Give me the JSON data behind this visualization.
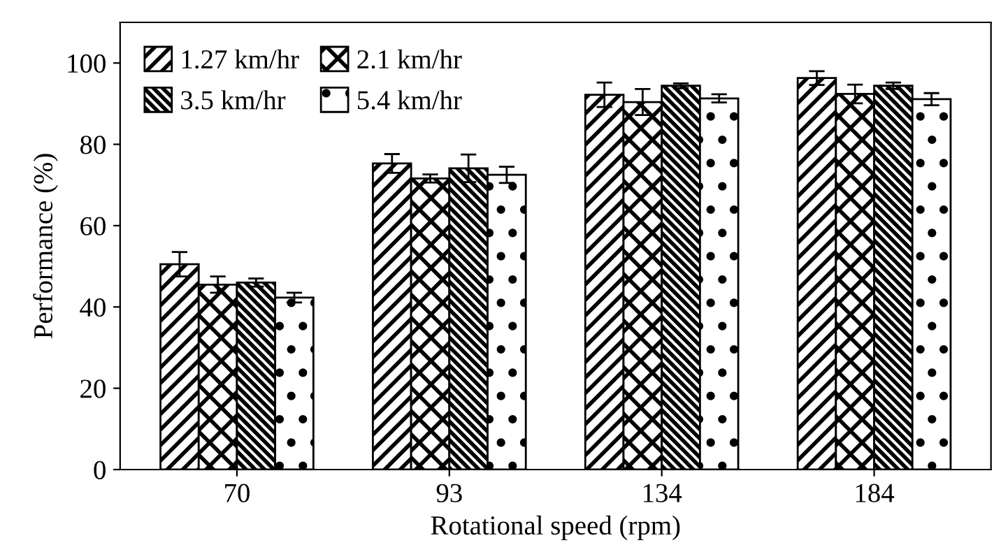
{
  "chart_data": {
    "type": "bar",
    "xlabel": "Rotational speed (rpm)",
    "ylabel": "Performance (%)",
    "categories": [
      "70",
      "93",
      "134",
      "184"
    ],
    "series": [
      {
        "name": "1.27 km/hr",
        "color": "#000000",
        "values": [
          50.5,
          75.3,
          92.2,
          96.3
        ],
        "errors": [
          3,
          2.3,
          3,
          1.7
        ]
      },
      {
        "name": "2.1 km/hr",
        "color": "#000000",
        "values": [
          45.5,
          71.6,
          90.4,
          92.4
        ],
        "errors": [
          2,
          1,
          3.2,
          2.3
        ]
      },
      {
        "name": "3.5 km/hr",
        "color": "#000000",
        "values": [
          46,
          74.1,
          94.4,
          94.4
        ],
        "errors": [
          1,
          3.4,
          0.6,
          0.8
        ]
      },
      {
        "name": "5.4 km/hr",
        "color": "#000000",
        "values": [
          42.3,
          72.5,
          91.3,
          91.1
        ],
        "errors": [
          1.2,
          2,
          1,
          1.5
        ]
      }
    ],
    "ylim": [
      0,
      110
    ],
    "yticks": [
      0,
      20,
      40,
      60,
      80,
      100
    ],
    "grid": false,
    "legend": "top left"
  }
}
